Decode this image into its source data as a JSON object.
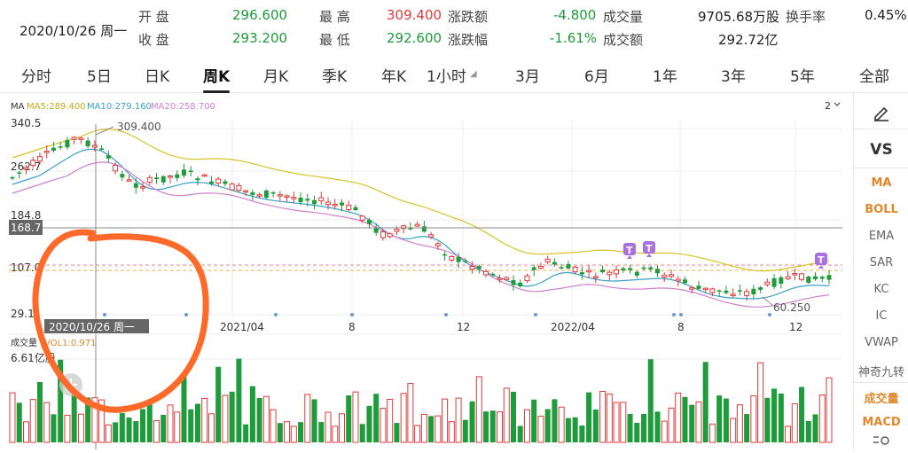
{
  "header": {
    "date": "2020/10/26 周一",
    "open_label": "开 盘",
    "open": "296.600",
    "close_label": "收 盘",
    "close": "293.200",
    "high_label": "最 高",
    "high": "309.400",
    "low_label": "最 低",
    "low": "292.600",
    "change_label": "涨跌额",
    "change": "-4.800",
    "change_pct_label": "涨跌幅",
    "change_pct": "-1.61%",
    "volume_label": "成交量",
    "volume": "9705.68万股",
    "turnover_label": "成交额",
    "turnover": "292.72亿",
    "turnover_rate_label": "换手率",
    "turnover_rate": "0.45%"
  },
  "tabs": [
    {
      "label": "分时"
    },
    {
      "label": "5日"
    },
    {
      "label": "日K"
    },
    {
      "label": "周K",
      "active": true
    },
    {
      "label": "月K"
    },
    {
      "label": "季K"
    },
    {
      "label": "年K"
    },
    {
      "label": "1小时"
    },
    {
      "label": "3月"
    },
    {
      "label": "6月"
    },
    {
      "label": "1年"
    },
    {
      "label": "3年"
    },
    {
      "label": "5年"
    },
    {
      "label": "全部"
    }
  ],
  "chart": {
    "ma_label": "MA",
    "ma5": "MA5:289.400",
    "ma10": "MA10:279.160",
    "ma20": "MA20:258.700",
    "period_switch": "2",
    "y_ticks": [
      "340.5",
      "262.7",
      "184.8",
      "107.0",
      "29.1"
    ],
    "crosshair_value": "168.7",
    "max_annotation": "309.400",
    "min_annotation": "60.250",
    "crosshair_date": "2020/10/26 周一",
    "x_ticks": [
      "2021/04",
      "8",
      "12",
      "2022/04",
      "8",
      "12"
    ],
    "vol_label": "成交量",
    "vol_value": "VOL1:0.971",
    "vol_max": "6.61亿股",
    "marker_letter": "T",
    "colors": {
      "up": "#e03a3a",
      "down": "#1e9b3a",
      "ma5": "#d8c22a",
      "ma10": "#3aa0c8",
      "ma20": "#d07fcf",
      "annotation": "#ff6a2a"
    }
  },
  "right_panel": {
    "items": [
      "VS",
      "MA",
      "BOLL",
      "EMA",
      "SAR",
      "KC",
      "IC",
      "VWAP",
      "神奇九转",
      "成交量",
      "MACD"
    ],
    "edit_icon": "pencil-icon",
    "settings_icon": "settings-icon"
  }
}
